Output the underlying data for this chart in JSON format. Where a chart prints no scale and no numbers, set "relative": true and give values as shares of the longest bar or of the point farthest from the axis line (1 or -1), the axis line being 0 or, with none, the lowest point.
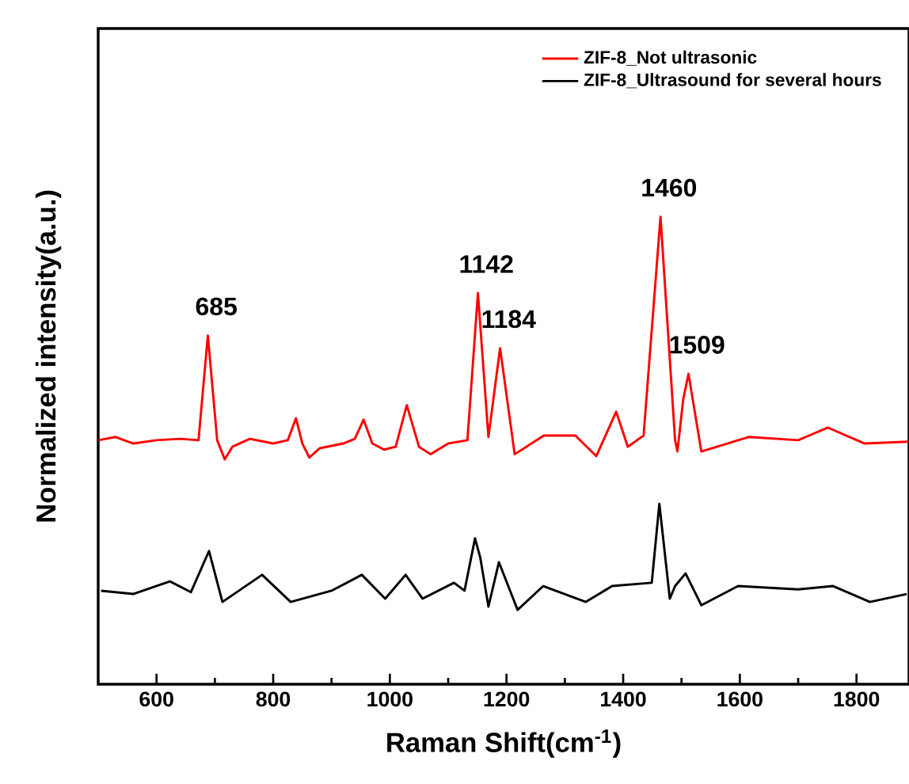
{
  "chart_data": {
    "type": "line",
    "relative": true,
    "xlabel": "Raman Shift(cm$^{-1}$)",
    "ylabel": "Normalized intensity(a.u.)",
    "xlim": [
      500,
      1890
    ],
    "xticks": [
      600,
      800,
      1000,
      1200,
      1400,
      1600,
      1800
    ],
    "legend": "top right",
    "marker": "none",
    "tick_labels": "x",
    "series": [
      {
        "name": "ZIF-8_Not ultrasonic",
        "color": "#ff0000",
        "x": [
          500,
          530,
          560,
          600,
          640,
          672,
          688,
          704,
          717,
          730,
          760,
          800,
          825,
          839,
          850,
          862,
          880,
          920,
          940,
          955,
          970,
          990,
          1010,
          1029,
          1050,
          1070,
          1100,
          1133,
          1151,
          1169,
          1189,
          1214,
          1264,
          1318,
          1354,
          1388,
          1408,
          1435,
          1464,
          1489,
          1493,
          1503,
          1512,
          1534,
          1615,
          1700,
          1751,
          1814,
          1889
        ],
        "values": [
          0.522,
          0.529,
          0.515,
          0.522,
          0.525,
          0.522,
          0.746,
          0.522,
          0.481,
          0.508,
          0.525,
          0.515,
          0.522,
          0.569,
          0.515,
          0.485,
          0.505,
          0.515,
          0.525,
          0.566,
          0.515,
          0.502,
          0.508,
          0.597,
          0.508,
          0.492,
          0.515,
          0.522,
          0.837,
          0.529,
          0.719,
          0.492,
          0.532,
          0.532,
          0.488,
          0.583,
          0.508,
          0.532,
          1.0,
          0.522,
          0.498,
          0.61,
          0.664,
          0.498,
          0.529,
          0.522,
          0.549,
          0.515,
          0.519
        ]
      },
      {
        "name": "ZIF-8_Ultrasound for several hours",
        "color": "#000000",
        "x": [
          505,
          560,
          623,
          659,
          690,
          713,
          781,
          830,
          900,
          952,
          992,
          1027,
          1056,
          1110,
          1128,
          1146,
          1155,
          1169,
          1187,
          1219,
          1263,
          1336,
          1381,
          1449,
          1462,
          1480,
          1489,
          1507,
          1534,
          1597,
          1700,
          1760,
          1823,
          1886
        ],
        "values": [
          0.2,
          0.193,
          0.22,
          0.197,
          0.285,
          0.176,
          0.234,
          0.176,
          0.2,
          0.234,
          0.183,
          0.234,
          0.183,
          0.217,
          0.2,
          0.312,
          0.271,
          0.166,
          0.261,
          0.159,
          0.21,
          0.176,
          0.21,
          0.217,
          0.386,
          0.183,
          0.21,
          0.237,
          0.169,
          0.21,
          0.203,
          0.21,
          0.176,
          0.193
        ]
      }
    ],
    "annotations": [
      {
        "text": "685",
        "x": 688,
        "y": 0.746
      },
      {
        "text": "1142",
        "x": 1151,
        "y": 0.837
      },
      {
        "text": "1184",
        "x": 1189,
        "y": 0.719
      },
      {
        "text": "1460",
        "x": 1464,
        "y": 1.0
      },
      {
        "text": "1509",
        "x": 1512,
        "y": 0.664
      }
    ]
  }
}
